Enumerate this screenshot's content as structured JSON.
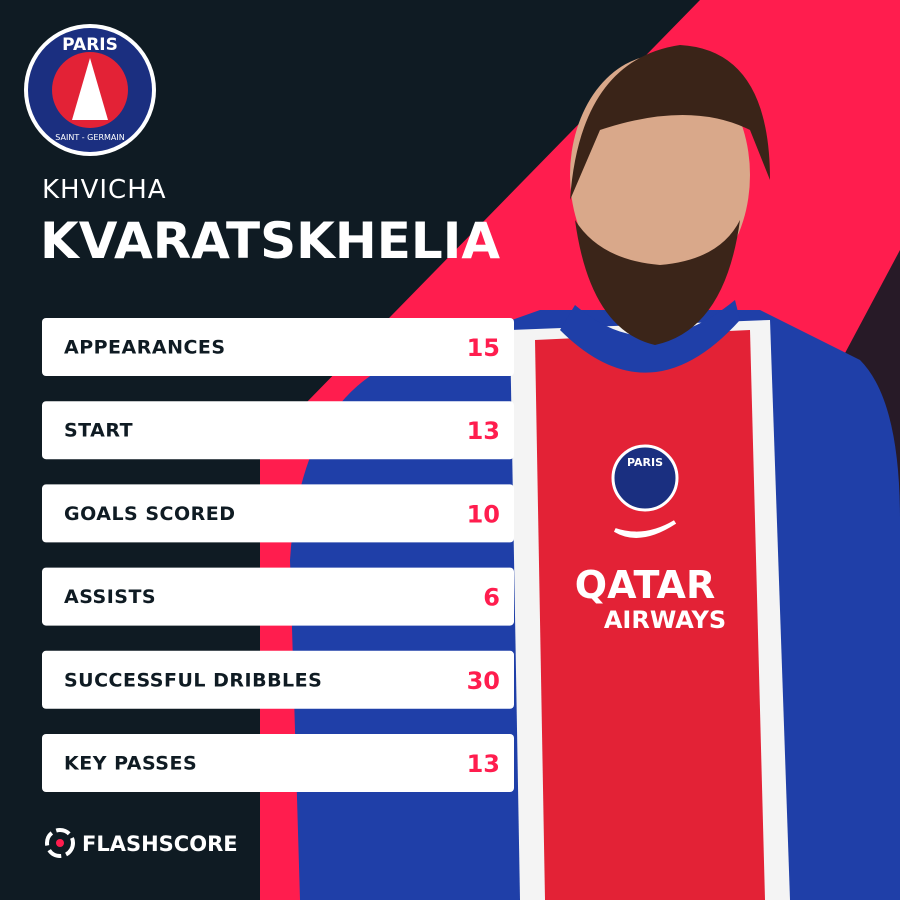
{
  "club_logo": {
    "top": "PARIS",
    "bottom": "SAINT - GERMAIN"
  },
  "player": {
    "first_name": "KHVICHA",
    "last_name": "KVARATSKHELIA"
  },
  "stats": [
    {
      "label": "APPEARANCES",
      "value": 15
    },
    {
      "label": "START",
      "value": 13
    },
    {
      "label": "GOALS SCORED",
      "value": 10
    },
    {
      "label": "ASSISTS",
      "value": 6
    },
    {
      "label": "SUCCESSFUL DRIBBLES",
      "value": 30
    },
    {
      "label": "KEY PASSES",
      "value": 13
    }
  ],
  "shirt": {
    "crest": "PARIS",
    "sponsor_top": "QATAR",
    "sponsor_bottom": "AIRWAYS"
  },
  "brand": "FLASHSCORE"
}
